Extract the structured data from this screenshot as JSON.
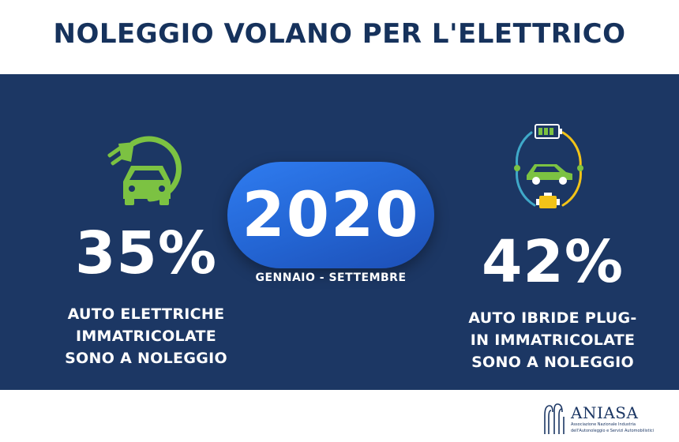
{
  "header": {
    "title": "NOLEGGIO VOLANO PER L'ELETTRICO"
  },
  "left_stat": {
    "icon": "electric-car-plug-icon",
    "value": "35%",
    "lines": [
      "AUTO ELETTRICHE",
      "IMMATRICOLATE",
      "SONO A NOLEGGIO"
    ]
  },
  "center": {
    "year": "2020",
    "period": "GENNAIO - SETTEMBRE"
  },
  "right_stat": {
    "icon": "hybrid-car-cycle-icon",
    "value": "42%",
    "lines": [
      "AUTO IBRIDE PLUG-",
      "IN IMMATRICOLATE",
      "SONO A NOLEGGIO"
    ]
  },
  "footer": {
    "logo": {
      "name": "ANIASA",
      "subtitle_lines": [
        "Associazione Nazionale Industria",
        "dell'Autonoleggio e Servizi Automobilistici"
      ]
    }
  },
  "colors": {
    "panel": "#1c3764",
    "title": "#16325c",
    "pill": "#2364d2",
    "green": "#7cc242",
    "yellow": "#f2c318",
    "teal": "#3fa9c9"
  }
}
